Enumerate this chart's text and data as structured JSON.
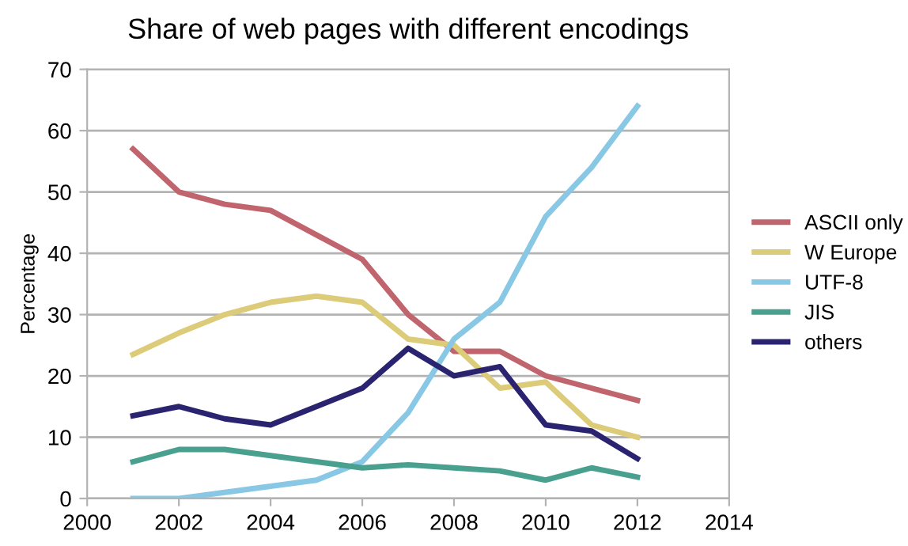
{
  "chart_data": {
    "type": "line",
    "title": "Share of web pages with different encodings",
    "ylabel": "Percentage",
    "x": [
      2001,
      2002,
      2003,
      2004,
      2005,
      2006,
      2007,
      2008,
      2009,
      2010,
      2011,
      2012
    ],
    "series": [
      {
        "name": "ASCII only",
        "color": "#c0646e",
        "values": [
          57,
          50,
          48,
          47,
          43,
          39,
          30,
          24,
          24,
          20,
          18,
          16
        ]
      },
      {
        "name": "W Europe",
        "color": "#dccb78",
        "values": [
          23.5,
          27,
          30,
          32,
          33,
          32,
          26,
          25,
          18,
          19,
          12,
          10
        ]
      },
      {
        "name": "UTF-8",
        "color": "#88c8e4",
        "values": [
          0,
          0,
          1,
          2,
          3,
          6,
          14,
          26,
          32,
          46,
          54,
          64
        ]
      },
      {
        "name": "JIS",
        "color": "#4aa08e",
        "values": [
          6,
          8,
          8,
          7,
          6,
          5,
          5.5,
          5,
          4.5,
          3,
          5,
          3.5
        ]
      },
      {
        "name": "others",
        "color": "#2a2370",
        "values": [
          13.5,
          15,
          13,
          12,
          15,
          18,
          24.5,
          20,
          21.5,
          12,
          11,
          6.5
        ]
      }
    ],
    "xlim": [
      2000,
      2014
    ],
    "xticks": [
      2000,
      2002,
      2004,
      2006,
      2008,
      2010,
      2012,
      2014
    ],
    "ylim": [
      0,
      70
    ],
    "yticks": [
      0,
      10,
      20,
      30,
      40,
      50,
      60,
      70
    ],
    "grid": "y",
    "legend": "right",
    "marker": "none",
    "line_style": "solid"
  }
}
